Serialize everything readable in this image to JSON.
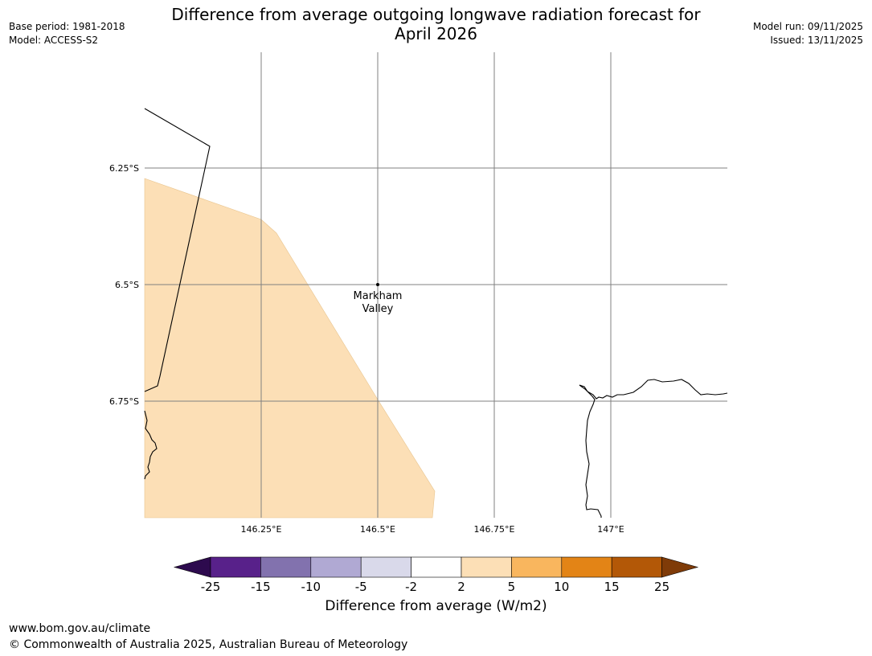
{
  "header": {
    "title_line1": "Difference from average outgoing longwave radiation forecast for",
    "title_line2": "April 2026",
    "base_period": "Base period: 1981-2018",
    "model": "Model: ACCESS-S2",
    "model_run": "Model run: 09/11/2025",
    "issued": "Issued: 13/11/2025"
  },
  "map": {
    "lat_labels": [
      "6.25°S",
      "6.5°S",
      "6.75°S"
    ],
    "lon_labels": [
      "146.25°E",
      "146.5°E",
      "146.75°E",
      "147°E"
    ],
    "place": {
      "name_line1": "Markham",
      "name_line2": "Valley"
    },
    "region_color": "#fcdfb6",
    "grid_color": "#808080"
  },
  "colorbar": {
    "ticks": [
      "-25",
      "-15",
      "-10",
      "-5",
      "-2",
      "2",
      "5",
      "10",
      "15",
      "25"
    ],
    "colors": [
      "#2d0a4e",
      "#58218a",
      "#8272ae",
      "#b0a9d3",
      "#d9d9ea",
      "#ffffff",
      "#fcdfb6",
      "#f9b65e",
      "#e38416",
      "#b35807",
      "#7f3b08"
    ],
    "label": "Difference from average (W/m2)"
  },
  "footer": {
    "url": "www.bom.gov.au/climate",
    "copyright": "© Commonwealth of Australia 2025, Australian Bureau of Meteorology"
  }
}
